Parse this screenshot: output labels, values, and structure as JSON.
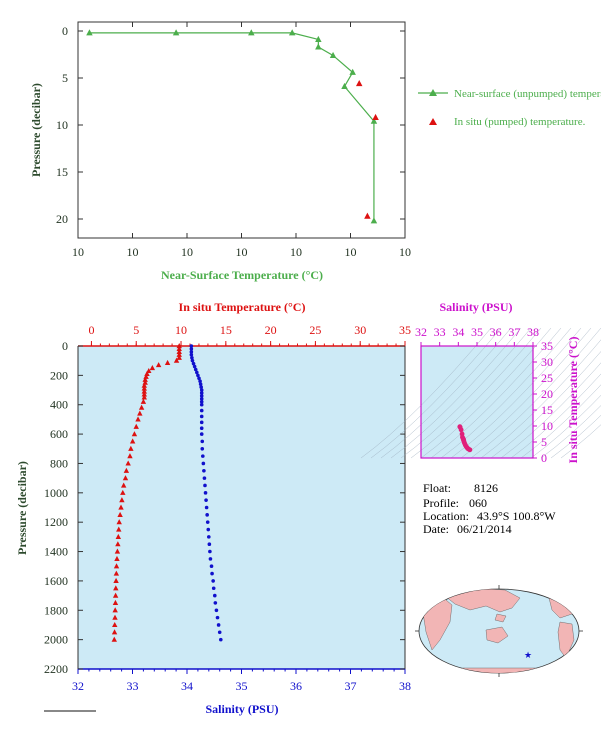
{
  "colors": {
    "near_surface": "#4cae4c",
    "insitu": "#dd1111",
    "salinity": "#1010cc",
    "ts_axis": "#cc11cc",
    "ts_points": "#e0207a",
    "panel_bg": "#cdeaf6",
    "grid_text": "#223322",
    "land": "#f2b5b5",
    "ocean": "#cdeaf6"
  },
  "chart_data": [
    {
      "type": "line",
      "xlabel": "Near-Surface Temperature (°C)",
      "ylabel": "Pressure (decibar)",
      "x_tick_labels": [
        "10",
        "10",
        "10",
        "10",
        "10",
        "10",
        "10"
      ],
      "ylim": [
        0,
        22
      ],
      "y_ticks": [
        0,
        5,
        10,
        15,
        20
      ],
      "y_inverted": true,
      "legend_position": "right",
      "series": [
        {
          "name": "Near-surface (unpumped) temperature.",
          "marker": "triangle-line",
          "x_frac": [
            0.035,
            0.3,
            0.53,
            0.655,
            0.735,
            0.735,
            0.78,
            0.84,
            0.815,
            0.905,
            0.905
          ],
          "y": [
            0.2,
            0.2,
            0.2,
            0.2,
            0.9,
            1.7,
            2.6,
            4.4,
            5.9,
            9.6,
            20.2
          ]
        },
        {
          "name": "In situ (pumped) temperature.",
          "marker": "triangle",
          "x_frac": [
            0.86,
            0.91,
            0.885
          ],
          "y": [
            5.6,
            9.2,
            19.7
          ]
        }
      ]
    },
    {
      "type": "scatter",
      "x_top_label": "In situ Temperature (°C)",
      "x_bottom_label": "Salinity (PSU)",
      "ylabel": "Pressure (decibar)",
      "temp_ticks": [
        0,
        5,
        10,
        15,
        20,
        25,
        30,
        35
      ],
      "temp_lim": [
        -1.5,
        35
      ],
      "sal_ticks": [
        32,
        33,
        34,
        35,
        36,
        37,
        38
      ],
      "sal_lim": [
        32,
        38
      ],
      "pressure_ticks": [
        0,
        200,
        400,
        600,
        800,
        1000,
        1200,
        1400,
        1600,
        1800,
        2000,
        2200
      ],
      "pressure_lim": [
        0,
        2200
      ],
      "y_inverted": true,
      "temperature_profile": {
        "pressure": [
          0,
          20,
          40,
          60,
          80,
          100,
          115,
          130,
          150,
          170,
          190,
          210,
          230,
          250,
          270,
          290,
          310,
          330,
          350,
          380,
          420,
          460,
          500,
          550,
          600,
          650,
          700,
          750,
          800,
          850,
          900,
          950,
          1000,
          1050,
          1100,
          1150,
          1200,
          1250,
          1300,
          1350,
          1400,
          1450,
          1500,
          1550,
          1600,
          1650,
          1700,
          1750,
          1800,
          1850,
          1900,
          1950,
          2000
        ],
        "temperature": [
          9.8,
          9.8,
          9.8,
          9.8,
          9.8,
          9.5,
          8.5,
          7.5,
          6.8,
          6.4,
          6.2,
          6.1,
          6.0,
          6.0,
          5.9,
          5.9,
          5.9,
          5.9,
          5.9,
          5.8,
          5.6,
          5.4,
          5.2,
          5.0,
          4.8,
          4.6,
          4.4,
          4.3,
          4.1,
          3.9,
          3.8,
          3.6,
          3.5,
          3.4,
          3.3,
          3.2,
          3.1,
          3.05,
          3.0,
          2.95,
          2.9,
          2.85,
          2.8,
          2.78,
          2.75,
          2.72,
          2.7,
          2.68,
          2.65,
          2.63,
          2.6,
          2.58,
          2.55
        ]
      },
      "salinity_profile": {
        "pressure": [
          0,
          20,
          40,
          60,
          80,
          100,
          120,
          140,
          160,
          180,
          200,
          220,
          240,
          260,
          280,
          300,
          320,
          340,
          360,
          380,
          400,
          440,
          480,
          520,
          560,
          600,
          650,
          700,
          750,
          800,
          850,
          900,
          950,
          1000,
          1050,
          1100,
          1150,
          1200,
          1250,
          1300,
          1350,
          1400,
          1450,
          1500,
          1550,
          1600,
          1650,
          1700,
          1750,
          1800,
          1850,
          1900,
          1950,
          2000
        ],
        "salinity": [
          34.08,
          34.08,
          34.08,
          34.08,
          34.09,
          34.1,
          34.12,
          34.14,
          34.16,
          34.18,
          34.2,
          34.22,
          34.24,
          34.25,
          34.26,
          34.27,
          34.27,
          34.27,
          34.27,
          34.27,
          34.27,
          34.27,
          34.27,
          34.27,
          34.27,
          34.27,
          34.28,
          34.28,
          34.29,
          34.3,
          34.31,
          34.32,
          34.33,
          34.34,
          34.35,
          34.36,
          34.37,
          34.38,
          34.39,
          34.4,
          34.41,
          34.42,
          34.43,
          34.45,
          34.46,
          34.48,
          34.49,
          34.51,
          34.52,
          34.54,
          34.56,
          34.58,
          34.6,
          34.62
        ]
      }
    },
    {
      "type": "scatter",
      "xlabel": "Salinity (PSU)",
      "ylabel": "In situ Temperature (°C)",
      "sal_ticks": [
        32,
        33,
        34,
        35,
        36,
        37,
        38
      ],
      "temp_ticks": [
        0,
        5,
        10,
        15,
        20,
        25,
        30,
        35
      ],
      "points": {
        "salinity": [
          34.08,
          34.1,
          34.15,
          34.2,
          34.22,
          34.25,
          34.27,
          34.27,
          34.28,
          34.3,
          34.32,
          34.35,
          34.38,
          34.42,
          34.46,
          34.5,
          34.55,
          34.6,
          34.62
        ],
        "temperature": [
          9.8,
          9.6,
          8.8,
          7.5,
          6.5,
          6.1,
          5.9,
          5.8,
          5.6,
          5.2,
          4.8,
          4.4,
          4.0,
          3.6,
          3.3,
          3.0,
          2.8,
          2.6,
          2.55
        ]
      }
    }
  ],
  "info": {
    "float_label": "Float:",
    "float_value": "8126",
    "profile_label": "Profile:",
    "profile_value": "060",
    "location_label": "Location:",
    "location_value": "43.9°S  100.8°W",
    "date_label": "Date:",
    "date_value": "06/21/2014"
  },
  "map": {
    "float_marker": "star"
  }
}
